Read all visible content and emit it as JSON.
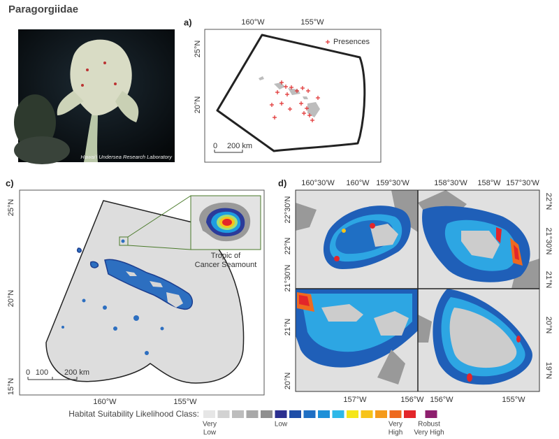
{
  "header": {
    "title": "Paragorgiidae"
  },
  "photo": {
    "credit": "Hawai'i Undersea Research Laboratory"
  },
  "panel_a": {
    "label": "a)",
    "lon_labels": [
      "160°W",
      "155°W"
    ],
    "lat_labels": [
      "25°N",
      "20°N"
    ],
    "legend": "Presences",
    "scale": [
      "0",
      "200 km"
    ]
  },
  "panel_c": {
    "label": "c)",
    "lat_labels": [
      "25°N",
      "20°N",
      "15°N"
    ],
    "lon_labels": [
      "160°W",
      "155°W"
    ],
    "scale": [
      "0",
      "100",
      "200 km"
    ],
    "inset_caption": [
      "Tropic of",
      "Cancer Seamount"
    ]
  },
  "panel_d": {
    "label": "d)",
    "top_labels": [
      "160°30'W",
      "160°W",
      "159°30'W",
      "158°30'W",
      "158°W",
      "157°30'W"
    ],
    "left_labels": [
      "22°30'N",
      "22°N",
      "21°30'N",
      "21°N",
      "20°N"
    ],
    "right_labels": [
      "22°N",
      "21°30'N",
      "21°N",
      "20°N",
      "19°N"
    ],
    "bottom_labels": [
      "157°W",
      "156°W",
      "156°W",
      "155°W"
    ]
  },
  "legend": {
    "title": "Habitat Suitability Likelihood Class:",
    "colors": [
      "#e6e6e6",
      "#d2d2d2",
      "#bdbdbd",
      "#a8a8a8",
      "#8f8f8f",
      "#2b2f8f",
      "#1f4fa8",
      "#1f6fc4",
      "#1e90d8",
      "#2fb8e8",
      "#f5e619",
      "#f7c31a",
      "#f59a1a",
      "#ee6a1f",
      "#e3262a",
      "#8e1f6e"
    ],
    "very_low": [
      "Very",
      "Low"
    ],
    "low": "Low",
    "very_high": [
      "Very",
      "High"
    ],
    "robust": [
      "Robust",
      "Very High"
    ]
  }
}
